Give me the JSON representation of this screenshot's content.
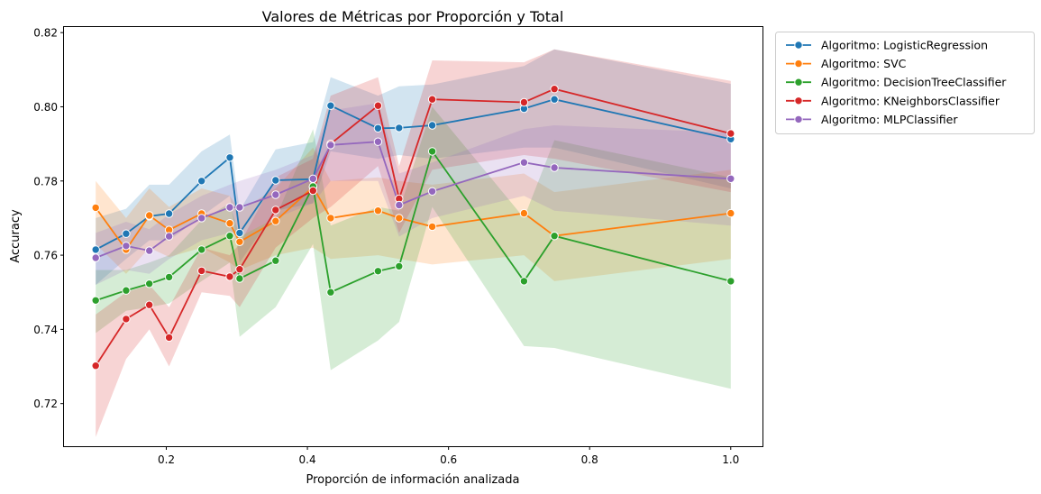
{
  "chart_data": {
    "type": "line",
    "title": "Valores de Métricas por Proporción y Total",
    "xlabel": "Proporción de información analizada",
    "ylabel": "Accuracy",
    "xlim": [
      0.055,
      1.045
    ],
    "ylim": [
      0.7085,
      0.8215
    ],
    "xticks": [
      0.2,
      0.4,
      0.6,
      0.8,
      1.0
    ],
    "xtick_labels": [
      "0.2",
      "0.4",
      "0.6",
      "0.8",
      "1.0"
    ],
    "yticks": [
      0.72,
      0.74,
      0.76,
      0.78,
      0.8,
      0.82
    ],
    "ytick_labels": [
      "0.72",
      "0.74",
      "0.76",
      "0.78",
      "0.80",
      "0.82"
    ],
    "grid": false,
    "legend_position": "outside upper-right",
    "x": [
      0.1,
      0.143,
      0.176,
      0.204,
      0.25,
      0.29,
      0.304,
      0.355,
      0.408,
      0.433,
      0.5,
      0.53,
      0.577,
      0.707,
      0.75,
      1.0
    ],
    "series": [
      {
        "name": "Algoritmo: LogisticRegression",
        "color": "#1f77b4",
        "values": [
          0.7615,
          0.7658,
          0.7705,
          0.7712,
          0.78,
          0.7863,
          0.766,
          0.7802,
          0.7805,
          0.8003,
          0.7942,
          0.7943,
          0.795,
          0.7995,
          0.802,
          0.7913
        ],
        "lower": [
          0.752,
          0.759,
          0.764,
          0.764,
          0.7705,
          0.776,
          0.758,
          0.772,
          0.774,
          0.788,
          0.786,
          0.787,
          0.786,
          0.789,
          0.789,
          0.778
        ],
        "upper": [
          0.77,
          0.7725,
          0.779,
          0.779,
          0.788,
          0.7925,
          0.772,
          0.7885,
          0.7905,
          0.808,
          0.803,
          0.8055,
          0.806,
          0.811,
          0.8155,
          0.8062
        ]
      },
      {
        "name": "Algoritmo: SVC",
        "color": "#ff7f0e",
        "values": [
          0.7728,
          0.7615,
          0.7707,
          0.7668,
          0.7712,
          0.7686,
          0.7636,
          0.7692,
          0.7784,
          0.77,
          0.772,
          0.77,
          0.7677,
          0.7713,
          0.7652,
          0.7713
        ],
        "lower": [
          0.763,
          0.755,
          0.762,
          0.7595,
          0.762,
          0.758,
          0.756,
          0.76,
          0.762,
          0.759,
          0.76,
          0.759,
          0.7575,
          0.76,
          0.753,
          0.759
        ],
        "upper": [
          0.78,
          0.77,
          0.778,
          0.773,
          0.778,
          0.776,
          0.772,
          0.778,
          0.789,
          0.78,
          0.781,
          0.78,
          0.779,
          0.782,
          0.777,
          0.783
        ]
      },
      {
        "name": "Algoritmo: DecisionTreeClassifier",
        "color": "#2ca02c",
        "values": [
          0.7478,
          0.7505,
          0.7523,
          0.7541,
          0.7615,
          0.7652,
          0.7537,
          0.7585,
          0.7785,
          0.75,
          0.7557,
          0.757,
          0.788,
          0.753,
          0.7652,
          0.753
        ],
        "lower": [
          0.739,
          0.745,
          0.746,
          0.747,
          0.753,
          0.758,
          0.738,
          0.746,
          0.763,
          0.729,
          0.737,
          0.742,
          0.773,
          0.7355,
          0.735,
          0.724
        ],
        "upper": [
          0.756,
          0.756,
          0.758,
          0.76,
          0.7695,
          0.774,
          0.765,
          0.77,
          0.794,
          0.768,
          0.773,
          0.772,
          0.8,
          0.77,
          0.791,
          0.781
        ]
      },
      {
        "name": "Algoritmo: KNeighborsClassifier",
        "color": "#d62728",
        "values": [
          0.7302,
          0.7428,
          0.7466,
          0.7378,
          0.7558,
          0.7542,
          0.7562,
          0.7722,
          0.7774,
          0.79,
          0.8003,
          0.7752,
          0.802,
          0.8012,
          0.8048,
          0.7928
        ],
        "lower": [
          0.711,
          0.732,
          0.74,
          0.73,
          0.75,
          0.749,
          0.746,
          0.762,
          0.77,
          0.773,
          0.784,
          0.766,
          0.783,
          0.787,
          0.786,
          0.777
        ],
        "upper": [
          0.744,
          0.75,
          0.752,
          0.746,
          0.762,
          0.76,
          0.763,
          0.781,
          0.786,
          0.803,
          0.808,
          0.784,
          0.8125,
          0.812,
          0.8155,
          0.807
        ]
      },
      {
        "name": "Algoritmo: MLPClassifier",
        "color": "#9467bd",
        "values": [
          0.7593,
          0.7625,
          0.7612,
          0.7651,
          0.77,
          0.7729,
          0.7729,
          0.7763,
          0.7806,
          0.7897,
          0.7906,
          0.7735,
          0.7772,
          0.785,
          0.7836,
          0.7806
        ],
        "lower": [
          0.752,
          0.756,
          0.755,
          0.759,
          0.764,
          0.766,
          0.765,
          0.77,
          0.774,
          0.78,
          0.78,
          0.765,
          0.77,
          0.776,
          0.772,
          0.768
        ],
        "upper": [
          0.766,
          0.769,
          0.767,
          0.771,
          0.776,
          0.779,
          0.78,
          0.783,
          0.787,
          0.799,
          0.801,
          0.782,
          0.785,
          0.794,
          0.795,
          0.793
        ]
      }
    ]
  }
}
